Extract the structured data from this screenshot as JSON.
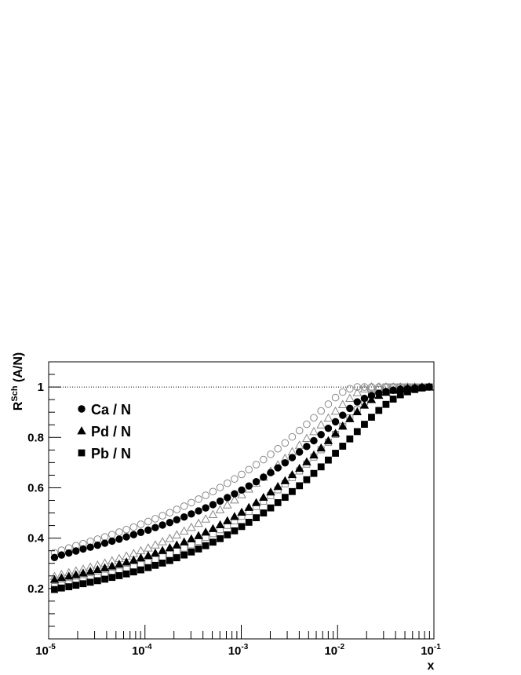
{
  "chart_data": {
    "type": "scatter",
    "title": "",
    "xlabel": "x",
    "ylabel": "R^{Sch} (A/N)",
    "ylabel_parts": {
      "base": "R",
      "sup": "Sch",
      "rest": " (A/N)"
    },
    "xscale": "log",
    "xlim": [
      1e-05,
      0.1
    ],
    "ylim": [
      0.0,
      1.1
    ],
    "x_tick_labels": [
      {
        "value": 1e-05,
        "base": "10",
        "exp": "-5"
      },
      {
        "value": 0.0001,
        "base": "10",
        "exp": "-4"
      },
      {
        "value": 0.001,
        "base": "10",
        "exp": "-3"
      },
      {
        "value": 0.01,
        "base": "10",
        "exp": "-2"
      },
      {
        "value": 0.1,
        "base": "10",
        "exp": "-1"
      }
    ],
    "y_tick_labels": [
      {
        "value": 0.2,
        "label": "0.2"
      },
      {
        "value": 0.4,
        "label": "0.4"
      },
      {
        "value": 0.6,
        "label": "0.6"
      },
      {
        "value": 0.8,
        "label": "0.8"
      },
      {
        "value": 1.0,
        "label": "1"
      }
    ],
    "reference_line": {
      "y": 1.0,
      "style": "dotted"
    },
    "grid": false,
    "legend_position": "top-left",
    "colors": {
      "filled": "#000000",
      "open": "#888888"
    },
    "x": [
      1.15e-05,
      1.36e-05,
      1.62e-05,
      1.92e-05,
      2.28e-05,
      2.71e-05,
      3.22e-05,
      3.83e-05,
      4.55e-05,
      5.4e-05,
      6.42e-05,
      7.63e-05,
      9.06e-05,
      0.000108,
      0.000128,
      0.000152,
      0.000181,
      0.000214,
      0.000255,
      0.000303,
      0.00036,
      0.000427,
      0.000508,
      0.000603,
      0.000717,
      0.000851,
      0.00101,
      0.0012,
      0.00143,
      0.0017,
      0.00202,
      0.0024,
      0.00285,
      0.00338,
      0.00402,
      0.00478,
      0.00567,
      0.00674,
      0.00801,
      0.00951,
      0.0113,
      0.0134,
      0.016,
      0.019,
      0.0225,
      0.0268,
      0.0318,
      0.0378,
      0.0449,
      0.0533,
      0.0634,
      0.0753,
      0.0894
    ],
    "series": [
      {
        "name": "Ca / N",
        "marker": "circle",
        "fill": "filled",
        "values": [
          0.323,
          0.333,
          0.341,
          0.349,
          0.357,
          0.364,
          0.372,
          0.38,
          0.388,
          0.396,
          0.405,
          0.414,
          0.423,
          0.432,
          0.442,
          0.452,
          0.462,
          0.473,
          0.484,
          0.496,
          0.508,
          0.52,
          0.533,
          0.547,
          0.561,
          0.576,
          0.591,
          0.607,
          0.624,
          0.642,
          0.66,
          0.679,
          0.699,
          0.72,
          0.742,
          0.764,
          0.787,
          0.811,
          0.836,
          0.862,
          0.888,
          0.915,
          0.941,
          0.955,
          0.966,
          0.975,
          0.982,
          0.987,
          0.991,
          0.994,
          0.996,
          0.998,
          1.0
        ]
      },
      {
        "name": "",
        "marker": "circle",
        "fill": "open",
        "values": [
          0.342,
          0.352,
          0.361,
          0.37,
          0.378,
          0.387,
          0.396,
          0.405,
          0.414,
          0.424,
          0.434,
          0.444,
          0.455,
          0.466,
          0.477,
          0.489,
          0.501,
          0.514,
          0.527,
          0.541,
          0.555,
          0.57,
          0.585,
          0.601,
          0.618,
          0.635,
          0.653,
          0.672,
          0.692,
          0.712,
          0.733,
          0.755,
          0.778,
          0.802,
          0.827,
          0.852,
          0.878,
          0.905,
          0.932,
          0.958,
          0.98,
          0.993,
          1.0,
          1.0,
          1.0,
          1.0,
          1.0,
          1.0,
          1.0,
          1.0,
          1.0,
          1.0,
          1.0
        ]
      },
      {
        "name": "Pd / N",
        "marker": "triangle",
        "fill": "filled",
        "values": [
          0.236,
          0.243,
          0.249,
          0.255,
          0.261,
          0.268,
          0.275,
          0.282,
          0.289,
          0.297,
          0.305,
          0.313,
          0.322,
          0.331,
          0.341,
          0.351,
          0.362,
          0.373,
          0.385,
          0.397,
          0.41,
          0.424,
          0.438,
          0.453,
          0.469,
          0.486,
          0.503,
          0.522,
          0.541,
          0.562,
          0.583,
          0.605,
          0.628,
          0.652,
          0.677,
          0.703,
          0.73,
          0.758,
          0.787,
          0.816,
          0.845,
          0.874,
          0.902,
          0.928,
          0.95,
          0.967,
          0.979,
          0.987,
          0.992,
          0.995,
          0.997,
          0.999,
          1.0
        ]
      },
      {
        "name": "",
        "marker": "triangle",
        "fill": "open",
        "values": [
          0.248,
          0.256,
          0.263,
          0.27,
          0.277,
          0.285,
          0.293,
          0.301,
          0.31,
          0.319,
          0.329,
          0.339,
          0.35,
          0.361,
          0.373,
          0.386,
          0.399,
          0.413,
          0.428,
          0.443,
          0.459,
          0.476,
          0.494,
          0.513,
          0.532,
          0.552,
          0.573,
          0.595,
          0.618,
          0.642,
          0.666,
          0.691,
          0.717,
          0.743,
          0.769,
          0.796,
          0.823,
          0.85,
          0.877,
          0.904,
          0.93,
          0.955,
          0.978,
          0.993,
          1.0,
          1.0,
          1.0,
          1.0,
          1.0,
          1.0,
          1.0,
          1.0,
          1.0
        ]
      },
      {
        "name": "Pb / N",
        "marker": "square",
        "fill": "filled",
        "values": [
          0.196,
          0.202,
          0.207,
          0.213,
          0.219,
          0.225,
          0.231,
          0.237,
          0.244,
          0.251,
          0.258,
          0.266,
          0.274,
          0.283,
          0.292,
          0.301,
          0.311,
          0.322,
          0.333,
          0.345,
          0.357,
          0.37,
          0.384,
          0.398,
          0.413,
          0.429,
          0.446,
          0.463,
          0.481,
          0.5,
          0.52,
          0.541,
          0.562,
          0.585,
          0.608,
          0.632,
          0.657,
          0.683,
          0.71,
          0.737,
          0.765,
          0.794,
          0.823,
          0.852,
          0.88,
          0.907,
          0.931,
          0.952,
          0.969,
          0.981,
          0.99,
          0.996,
          1.0
        ]
      },
      {
        "name": "",
        "marker": "square",
        "fill": "open",
        "values": [
          0.207,
          0.213,
          0.219,
          0.225,
          0.231,
          0.238,
          0.245,
          0.252,
          0.26,
          0.268,
          0.276,
          0.285,
          0.294,
          0.304,
          0.314,
          0.325,
          0.336,
          0.348,
          0.361,
          0.374,
          0.388,
          0.403,
          0.418,
          0.434,
          0.451,
          0.469,
          0.487,
          0.506,
          0.526,
          0.547,
          0.569,
          0.592,
          0.616,
          0.641,
          0.667,
          0.694,
          0.722,
          0.751,
          0.781,
          0.812,
          0.844,
          0.877,
          0.91,
          0.942,
          0.97,
          0.99,
          1.0,
          1.0,
          1.0,
          1.0,
          1.0,
          1.0,
          1.0
        ]
      }
    ],
    "legend": [
      {
        "label": "Ca / N",
        "marker": "circle"
      },
      {
        "label": "Pd / N",
        "marker": "triangle"
      },
      {
        "label": "Pb / N",
        "marker": "square"
      }
    ]
  }
}
